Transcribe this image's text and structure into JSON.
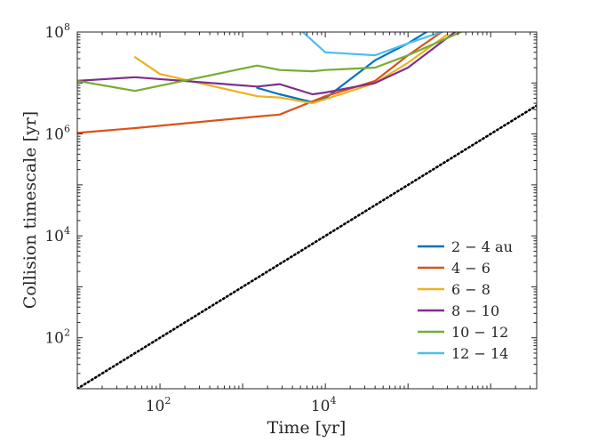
{
  "chart_data": {
    "type": "line",
    "xlabel": "Time [yr]",
    "ylabel": "Collision timescale [yr]",
    "xscale": "log",
    "yscale": "log",
    "xlim": [
      10,
      3600000
    ],
    "ylim": [
      10,
      100000000
    ],
    "xticks": [
      100,
      10000
    ],
    "yticks": [
      100,
      10000,
      1000000,
      100000000
    ],
    "grid": false,
    "legend_position": "bottom-right",
    "reference_line": {
      "style": "dotted",
      "color": "#000000",
      "points": [
        [
          10,
          10
        ],
        [
          3600000,
          3600000
        ]
      ]
    },
    "series": [
      {
        "name": "2 − 4 au",
        "color": "#0072BD",
        "points": [
          [
            1500,
            8000000
          ],
          [
            2800,
            6000000
          ],
          [
            7000,
            4200000
          ],
          [
            10000,
            5000000
          ],
          [
            40000,
            28000000
          ],
          [
            100000,
            60000000
          ],
          [
            200000,
            120000000
          ]
        ]
      },
      {
        "name": "4 − 6",
        "color": "#D95319",
        "points": [
          [
            10,
            1050000
          ],
          [
            50,
            1300000
          ],
          [
            1500,
            2200000
          ],
          [
            2800,
            2400000
          ],
          [
            10000,
            5500000
          ],
          [
            40000,
            11000000
          ],
          [
            100000,
            35000000
          ],
          [
            300000,
            120000000
          ]
        ]
      },
      {
        "name": "6 − 8",
        "color": "#EDB120",
        "points": [
          [
            50,
            32000000
          ],
          [
            100,
            15000000
          ],
          [
            1500,
            5500000
          ],
          [
            2800,
            5200000
          ],
          [
            7000,
            4000000
          ],
          [
            10000,
            4800000
          ],
          [
            40000,
            10000000
          ],
          [
            100000,
            25000000
          ],
          [
            300000,
            90000000
          ]
        ]
      },
      {
        "name": "8 − 10",
        "color": "#7E2F8E",
        "points": [
          [
            10,
            11000000
          ],
          [
            50,
            13000000
          ],
          [
            1500,
            8500000
          ],
          [
            2800,
            9500000
          ],
          [
            7000,
            6000000
          ],
          [
            10000,
            6500000
          ],
          [
            40000,
            10000000
          ],
          [
            100000,
            20000000
          ],
          [
            400000,
            110000000
          ]
        ]
      },
      {
        "name": "10 − 12",
        "color": "#77AC30",
        "points": [
          [
            10,
            11000000
          ],
          [
            50,
            7000000
          ],
          [
            1500,
            22000000
          ],
          [
            2800,
            18000000
          ],
          [
            7000,
            17000000
          ],
          [
            10000,
            18000000
          ],
          [
            40000,
            20000000
          ],
          [
            100000,
            35000000
          ],
          [
            500000,
            110000000
          ]
        ]
      },
      {
        "name": "12 − 14",
        "color": "#4DBEEE",
        "points": [
          [
            5000,
            110000000
          ],
          [
            10000,
            40000000
          ],
          [
            40000,
            35000000
          ],
          [
            100000,
            60000000
          ],
          [
            300000,
            110000000
          ]
        ]
      }
    ]
  }
}
